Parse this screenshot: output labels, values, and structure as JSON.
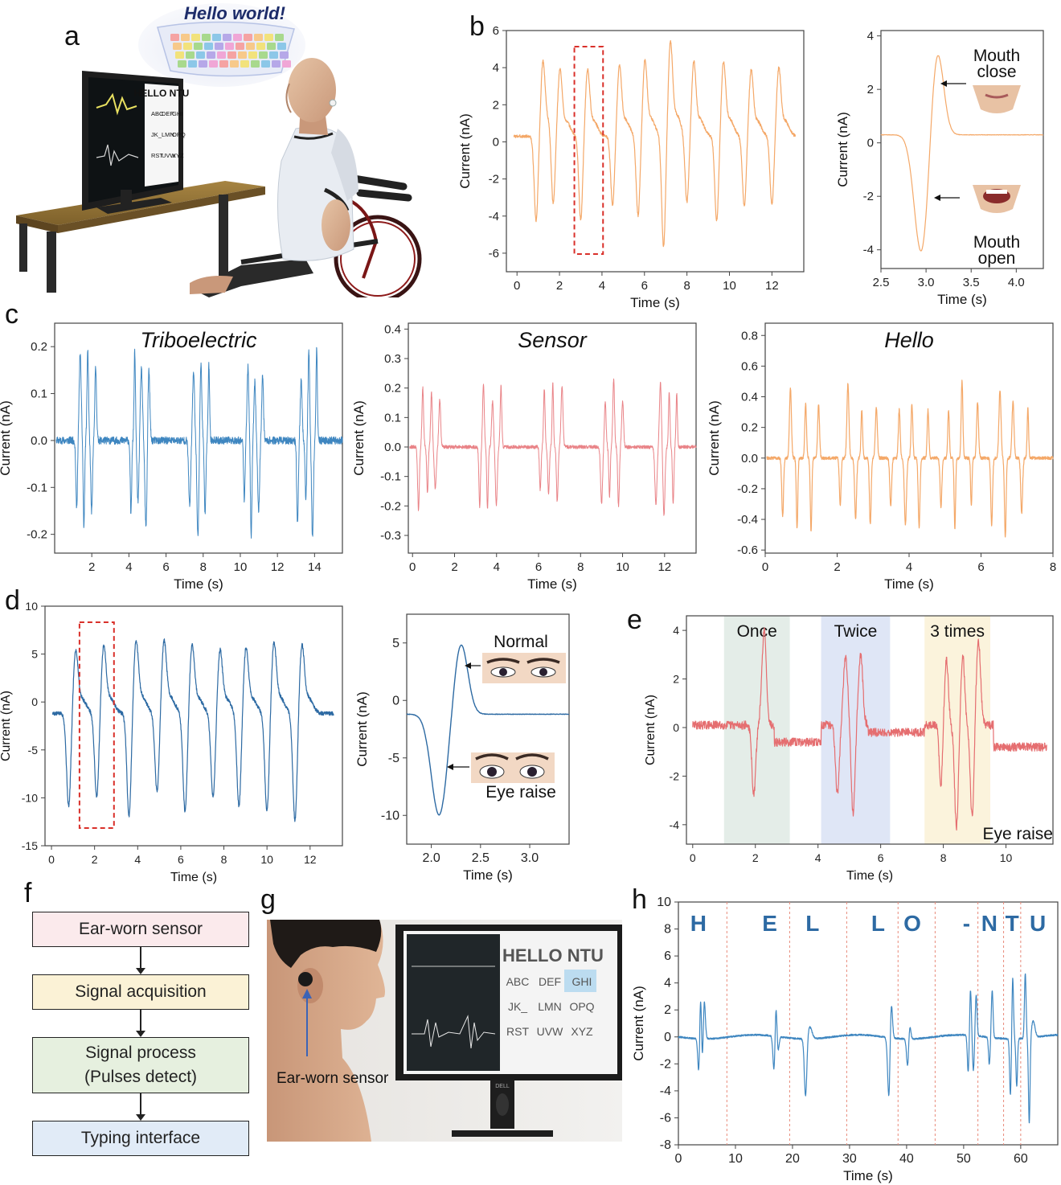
{
  "panel_letters": {
    "a": "a",
    "b": "b",
    "c": "c",
    "d": "d",
    "e": "e",
    "f": "f",
    "g": "g",
    "h": "h"
  },
  "illustration_a": {
    "bubble_text": "Hello world!",
    "screen_title": "HELLO NTU",
    "screen_keys": [
      "ABC",
      "DEF",
      "GHI",
      "JK_",
      "LMN",
      "OPQ",
      "RST",
      "UVW",
      "XYZ"
    ]
  },
  "flowchart_f": {
    "steps": [
      "Ear-worn sensor",
      "Signal acquisition",
      "Signal process",
      "Typing interface"
    ],
    "step3_sub": "(Pulses detect)",
    "colors": [
      "#fbeaec",
      "#fbf2d6",
      "#e6f0df",
      "#e1ebf7"
    ]
  },
  "photo_g": {
    "screen_title": "HELLO NTU",
    "keys": [
      "ABC",
      "DEF",
      "GHI",
      "JK_",
      "LMN",
      "OPQ",
      "RST",
      "UVW",
      "XYZ"
    ],
    "sensor_label": "Ear-worn sensor",
    "brand": "DELL"
  },
  "colors": {
    "orange": "#f4a868",
    "blue": "#3e86c0",
    "pink": "#e98387",
    "navy": "#2d6aa3",
    "red_box": "#d9302a"
  },
  "chart_data": [
    {
      "id": "b1",
      "type": "line",
      "xlabel": "Time (s)",
      "ylabel": "Current (nA)",
      "xlim": [
        -0.5,
        13.5
      ],
      "ylim": [
        -7,
        6
      ],
      "xticks": [
        0,
        2,
        4,
        6,
        8,
        10,
        12
      ],
      "yticks": [
        -6,
        -4,
        -2,
        0,
        2,
        4,
        6
      ],
      "color": "#f4a868",
      "baseline": 0.3,
      "pulses": [
        [
          0.9,
          -4.3,
          4.0
        ],
        [
          1.7,
          -3.9,
          3.6
        ],
        [
          3.0,
          -4.2,
          3.6
        ],
        [
          4.5,
          -3.4,
          3.8
        ],
        [
          5.7,
          -4.0,
          4.1
        ],
        [
          6.9,
          -5.7,
          5.0
        ],
        [
          8.0,
          -3.3,
          4.0
        ],
        [
          9.4,
          -4.3,
          4.0
        ],
        [
          10.7,
          -3.5,
          3.6
        ],
        [
          12.0,
          -3.4,
          3.7
        ]
      ],
      "highlight": [
        2.7,
        4.05
      ],
      "pulse_width": 0.09,
      "noise": 0.08,
      "seed": 3
    },
    {
      "id": "b2",
      "type": "line",
      "xlabel": "Time (s)",
      "ylabel": "Current (nA)",
      "xlim": [
        2.5,
        4.3
      ],
      "ylim": [
        -4.7,
        4.2
      ],
      "xticks": [
        2.5,
        3.0,
        3.5,
        4.0
      ],
      "xtick_labels": [
        "2.5",
        "3.0",
        "3.5",
        "4.0"
      ],
      "yticks": [
        -4,
        -2,
        0,
        2,
        4
      ],
      "color": "#f4a868",
      "annotations": {
        "top": [
          "Mouth",
          "close"
        ],
        "bottom": [
          "Mouth",
          "open"
        ]
      }
    },
    {
      "id": "c1",
      "type": "line",
      "title": "Triboelectric",
      "xlabel": "Time (s)",
      "ylabel": "Current (nA)",
      "xlim": [
        0,
        15.5
      ],
      "ylim": [
        -0.24,
        0.25
      ],
      "xticks": [
        2,
        4,
        6,
        8,
        10,
        12,
        14
      ],
      "yticks": [
        -0.2,
        -0.1,
        0.0,
        0.1,
        0.2
      ],
      "ytick_labels": [
        "-0.2",
        "-0.1",
        "0.0",
        "0.1",
        "0.2"
      ],
      "color": "#3e86c0",
      "bursts": [
        1.7,
        4.6,
        7.8,
        10.7,
        13.6
      ],
      "burst_amp": 0.2,
      "noise": 0.008,
      "seed": 11
    },
    {
      "id": "c2",
      "type": "line",
      "title": "Sensor",
      "xlabel": "Time (s)",
      "ylabel": "Current (nA)",
      "xlim": [
        -0.2,
        13.5
      ],
      "ylim": [
        -0.36,
        0.42
      ],
      "xticks": [
        0,
        2,
        4,
        6,
        8,
        10,
        12
      ],
      "yticks": [
        -0.3,
        -0.2,
        -0.1,
        0.0,
        0.1,
        0.2,
        0.3,
        0.4
      ],
      "ytick_labels": [
        "-0.3",
        "-0.2",
        "-0.1",
        "0.0",
        "0.1",
        "0.2",
        "0.3",
        "0.4"
      ],
      "color": "#e98387",
      "bursts": [
        0.8,
        3.7,
        6.6,
        9.5,
        12.1
      ],
      "burst_amp": 0.22,
      "noise": 0.006,
      "seed": 17
    },
    {
      "id": "c3",
      "type": "line",
      "title": "Hello",
      "xlabel": "Time (s)",
      "ylabel": "Current (nA)",
      "xlim": [
        0,
        8
      ],
      "ylim": [
        -0.62,
        0.88
      ],
      "xticks": [
        0,
        2,
        4,
        6,
        8
      ],
      "yticks": [
        -0.6,
        -0.4,
        -0.2,
        0.0,
        0.2,
        0.4,
        0.6,
        0.8
      ],
      "ytick_labels": [
        "-0.6",
        "-0.4",
        "-0.2",
        "0.0",
        "0.2",
        "0.4",
        "0.6",
        "0.8"
      ],
      "color": "#f4a868",
      "bursts": [
        1.0,
        2.6,
        4.0,
        5.4,
        6.8
      ],
      "burst_amp": 0.5,
      "noise": 0.01,
      "seed": 23
    },
    {
      "id": "d1",
      "type": "line",
      "xlabel": "Time (s)",
      "ylabel": "Current (nA)",
      "xlim": [
        -0.3,
        13.5
      ],
      "ylim": [
        -15,
        10
      ],
      "xticks": [
        0,
        2,
        4,
        6,
        8,
        10,
        12
      ],
      "yticks": [
        -15,
        -10,
        -5,
        0,
        5,
        10
      ],
      "color": "#2d6aa3",
      "baseline": -1.2,
      "pulses": [
        [
          0.8,
          -11,
          4.8
        ],
        [
          2.1,
          -10,
          5.2
        ],
        [
          3.6,
          -12,
          5.7
        ],
        [
          4.9,
          -9.5,
          5.7
        ],
        [
          6.2,
          -11.5,
          5.3
        ],
        [
          7.5,
          -10,
          4.8
        ],
        [
          8.7,
          -11,
          5.0
        ],
        [
          10.0,
          -11.5,
          5.5
        ],
        [
          11.3,
          -12.5,
          5.3
        ]
      ],
      "highlight": [
        1.3,
        2.9
      ],
      "pulse_width": 0.1,
      "noise": 0.2,
      "seed": 5
    },
    {
      "id": "d2",
      "type": "line",
      "xlabel": "Time (s)",
      "ylabel": "Current (nA)",
      "xlim": [
        1.75,
        3.4
      ],
      "ylim": [
        -12.5,
        7.5
      ],
      "xticks": [
        2.0,
        2.5,
        3.0
      ],
      "xtick_labels": [
        "2.0",
        "2.5",
        "3.0"
      ],
      "yticks": [
        -10,
        -5,
        0,
        5
      ],
      "color": "#2d6aa3",
      "annotations": {
        "top": [
          "Normal"
        ],
        "bottom": [
          "Eye raise"
        ]
      }
    },
    {
      "id": "e1",
      "type": "line",
      "xlabel": "Time (s)",
      "ylabel": "Current (nA)",
      "xlim": [
        -0.2,
        11.5
      ],
      "ylim": [
        -4.8,
        4.6
      ],
      "xticks": [
        0,
        2,
        4,
        6,
        8,
        10
      ],
      "yticks": [
        -4,
        -2,
        0,
        2,
        4
      ],
      "color": "#e56e70",
      "regions": [
        {
          "label": "Once",
          "x": [
            1.0,
            3.1
          ],
          "color": "#e4ede8"
        },
        {
          "label": "Twice",
          "x": [
            4.1,
            6.3
          ],
          "color": "#dfe6f6"
        },
        {
          "label": "3 times",
          "x": [
            7.4,
            9.5
          ],
          "color": "#fbf3dc"
        }
      ],
      "corner_label": "Eye raise",
      "seed": 29
    },
    {
      "id": "h1",
      "type": "line",
      "xlabel": "Time (s)",
      "ylabel": "Current (nA)",
      "xlim": [
        0,
        66.5
      ],
      "ylim": [
        -8,
        10
      ],
      "xticks": [
        0,
        10,
        20,
        30,
        40,
        50,
        60
      ],
      "yticks": [
        -8,
        -6,
        -4,
        -2,
        0,
        2,
        4,
        6,
        8,
        10
      ],
      "color": "#3e86c0",
      "dividers": [
        8.5,
        19.5,
        29.5,
        38.5,
        45,
        52.5,
        57,
        60
      ],
      "letters": [
        {
          "t": "H",
          "x": 3.5
        },
        {
          "t": "E",
          "x": 16
        },
        {
          "t": "L",
          "x": 23.5
        },
        {
          "t": "L",
          "x": 35
        },
        {
          "t": "O",
          "x": 41
        },
        {
          "t": "-",
          "x": 50.5
        },
        {
          "t": "N",
          "x": 54.5
        },
        {
          "t": "T",
          "x": 58.5
        },
        {
          "t": "U",
          "x": 63
        }
      ],
      "seed": 31
    }
  ]
}
